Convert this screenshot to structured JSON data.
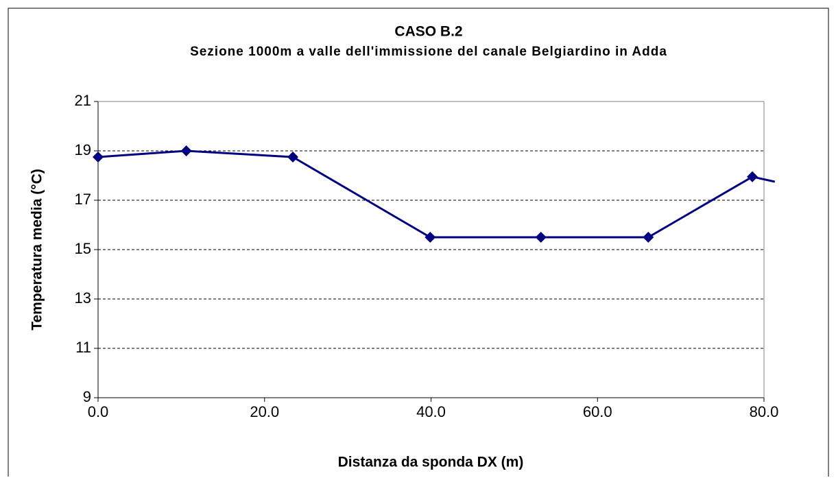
{
  "chart_data": {
    "type": "line",
    "title": "CASO B.2",
    "subtitle": "Sezione 1000m a valle dell'immissione del canale Belgiardino in Adda",
    "x_label": "Distanza da sponda DX (m)",
    "y_label": "Temperatura media (°C)",
    "x": [
      0,
      10.6,
      23.4,
      39.9,
      53.2,
      66.1,
      78.6,
      81.3
    ],
    "series": [
      {
        "color": "#000080",
        "values": [
          18.75,
          19.0,
          18.75,
          15.5,
          15.5,
          15.5,
          17.95,
          17.75
        ]
      }
    ],
    "xlim": [
      0,
      80
    ],
    "xticks": [
      {
        "value": 0,
        "label": "0.0"
      },
      {
        "value": 20,
        "label": "20.0"
      },
      {
        "value": 40,
        "label": "40.0"
      },
      {
        "value": 60,
        "label": "60.0"
      },
      {
        "value": 80,
        "label": "80.0"
      }
    ],
    "ylim": [
      9,
      21
    ],
    "yticks": [
      9,
      11,
      13,
      15,
      17,
      19,
      21
    ],
    "grid": true
  }
}
